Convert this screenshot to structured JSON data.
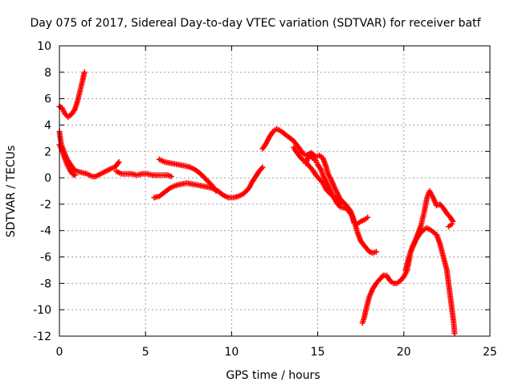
{
  "chart_data": {
    "type": "scatter",
    "title": "Day 075 of 2017, Sidereal Day-to-day VTEC variation (SDTVAR) for receiver batf",
    "xlabel": "GPS time / hours",
    "ylabel": "SDTVAR / TECUs",
    "xlim": [
      0,
      25
    ],
    "ylim": [
      -12,
      10
    ],
    "xticks": [
      0,
      5,
      10,
      15,
      20,
      25
    ],
    "yticks": [
      -12,
      -10,
      -8,
      -6,
      -4,
      -2,
      0,
      2,
      4,
      6,
      8,
      10
    ],
    "grid": true,
    "marker_color": "#ff0000",
    "marker": "plus",
    "series": [
      {
        "points": [
          [
            0.0,
            5.4
          ],
          [
            0.15,
            5.3
          ],
          [
            0.3,
            4.9
          ],
          [
            0.5,
            4.6
          ],
          [
            0.7,
            4.8
          ],
          [
            0.9,
            5.2
          ],
          [
            1.05,
            5.8
          ],
          [
            1.2,
            6.6
          ],
          [
            1.35,
            7.4
          ],
          [
            1.45,
            8.0
          ]
        ]
      },
      {
        "points": [
          [
            0.0,
            3.5
          ],
          [
            0.05,
            3.0
          ],
          [
            0.1,
            2.6
          ],
          [
            0.2,
            2.2
          ],
          [
            0.35,
            1.7
          ],
          [
            0.5,
            1.3
          ],
          [
            0.65,
            1.0
          ],
          [
            0.8,
            0.7
          ],
          [
            1.0,
            0.5
          ],
          [
            1.3,
            0.4
          ],
          [
            1.6,
            0.3
          ],
          [
            1.9,
            0.1
          ],
          [
            2.1,
            0.1
          ],
          [
            2.4,
            0.3
          ],
          [
            2.7,
            0.5
          ],
          [
            3.0,
            0.7
          ],
          [
            3.2,
            0.8
          ],
          [
            3.35,
            1.0
          ],
          [
            3.45,
            1.2
          ]
        ]
      },
      {
        "points": [
          [
            0.0,
            2.5
          ],
          [
            0.15,
            2.1
          ],
          [
            0.3,
            1.5
          ],
          [
            0.45,
            1.0
          ],
          [
            0.6,
            0.6
          ],
          [
            0.75,
            0.3
          ],
          [
            0.9,
            0.2
          ]
        ]
      },
      {
        "points": [
          [
            3.3,
            0.5
          ],
          [
            3.6,
            0.3
          ],
          [
            3.9,
            0.3
          ],
          [
            4.2,
            0.3
          ],
          [
            4.5,
            0.2
          ],
          [
            4.8,
            0.3
          ],
          [
            5.1,
            0.3
          ],
          [
            5.4,
            0.2
          ],
          [
            5.7,
            0.2
          ],
          [
            6.0,
            0.2
          ],
          [
            6.3,
            0.2
          ],
          [
            6.5,
            0.1
          ]
        ]
      },
      {
        "points": [
          [
            5.8,
            1.4
          ],
          [
            6.1,
            1.2
          ],
          [
            6.5,
            1.1
          ],
          [
            6.9,
            1.0
          ],
          [
            7.3,
            0.9
          ],
          [
            7.6,
            0.8
          ],
          [
            7.9,
            0.6
          ],
          [
            8.2,
            0.3
          ],
          [
            8.5,
            -0.1
          ],
          [
            8.8,
            -0.5
          ],
          [
            9.0,
            -0.8
          ],
          [
            9.1,
            -1.0
          ]
        ]
      },
      {
        "points": [
          [
            5.5,
            -1.5
          ],
          [
            5.8,
            -1.4
          ],
          [
            6.1,
            -1.1
          ],
          [
            6.4,
            -0.8
          ],
          [
            6.7,
            -0.6
          ],
          [
            7.0,
            -0.5
          ],
          [
            7.4,
            -0.4
          ],
          [
            7.8,
            -0.5
          ],
          [
            8.2,
            -0.6
          ],
          [
            8.6,
            -0.7
          ],
          [
            8.9,
            -0.8
          ],
          [
            9.2,
            -1.0
          ],
          [
            9.5,
            -1.3
          ],
          [
            9.8,
            -1.5
          ],
          [
            10.1,
            -1.5
          ],
          [
            10.4,
            -1.4
          ],
          [
            10.7,
            -1.2
          ],
          [
            11.0,
            -0.8
          ],
          [
            11.2,
            -0.3
          ],
          [
            11.4,
            0.1
          ],
          [
            11.6,
            0.5
          ],
          [
            11.8,
            0.8
          ]
        ]
      },
      {
        "points": [
          [
            11.8,
            2.2
          ],
          [
            12.0,
            2.6
          ],
          [
            12.2,
            3.1
          ],
          [
            12.4,
            3.5
          ],
          [
            12.6,
            3.7
          ],
          [
            12.8,
            3.6
          ],
          [
            13.0,
            3.4
          ],
          [
            13.3,
            3.1
          ],
          [
            13.6,
            2.8
          ],
          [
            13.9,
            2.3
          ],
          [
            14.1,
            1.9
          ],
          [
            14.3,
            1.7
          ],
          [
            14.5,
            1.8
          ],
          [
            14.7,
            1.5
          ],
          [
            14.9,
            1.3
          ],
          [
            15.0,
            1.0
          ],
          [
            15.2,
            0.6
          ],
          [
            15.3,
            0.2
          ],
          [
            15.5,
            -0.3
          ],
          [
            15.7,
            -0.9
          ],
          [
            15.9,
            -1.4
          ],
          [
            16.1,
            -1.9
          ],
          [
            16.3,
            -2.2
          ],
          [
            16.6,
            -2.3
          ],
          [
            16.8,
            -2.5
          ],
          [
            17.0,
            -2.9
          ],
          [
            17.1,
            -3.4
          ],
          [
            17.3,
            -3.5
          ],
          [
            17.5,
            -3.3
          ],
          [
            17.7,
            -3.2
          ],
          [
            17.9,
            -3.0
          ]
        ]
      },
      {
        "points": [
          [
            14.3,
            1.1
          ],
          [
            14.6,
            1.9
          ],
          [
            14.9,
            1.6
          ],
          [
            15.1,
            1.7
          ],
          [
            15.3,
            1.5
          ],
          [
            15.5,
            0.8
          ],
          [
            15.6,
            0.3
          ],
          [
            15.8,
            -0.2
          ],
          [
            16.0,
            -0.8
          ],
          [
            16.3,
            -1.6
          ],
          [
            16.6,
            -2.0
          ],
          [
            16.9,
            -2.5
          ],
          [
            17.1,
            -3.2
          ],
          [
            17.3,
            -4.1
          ],
          [
            17.5,
            -4.8
          ],
          [
            17.8,
            -5.3
          ],
          [
            18.0,
            -5.6
          ],
          [
            18.2,
            -5.7
          ],
          [
            18.4,
            -5.6
          ]
        ]
      },
      {
        "points": [
          [
            13.6,
            2.3
          ],
          [
            13.9,
            1.7
          ],
          [
            14.1,
            1.4
          ],
          [
            14.3,
            1.2
          ],
          [
            14.5,
            0.9
          ],
          [
            14.7,
            0.6
          ],
          [
            14.9,
            0.2
          ],
          [
            15.1,
            -0.1
          ],
          [
            15.3,
            -0.4
          ],
          [
            15.5,
            -0.9
          ],
          [
            15.8,
            -1.3
          ],
          [
            16.1,
            -1.6
          ],
          [
            16.3,
            -2.0
          ]
        ]
      },
      {
        "points": [
          [
            17.6,
            -11.0
          ],
          [
            17.7,
            -10.6
          ],
          [
            17.8,
            -10.0
          ],
          [
            17.9,
            -9.5
          ],
          [
            18.0,
            -9.0
          ],
          [
            18.2,
            -8.4
          ],
          [
            18.4,
            -8.0
          ],
          [
            18.6,
            -7.7
          ],
          [
            18.8,
            -7.4
          ],
          [
            19.0,
            -7.4
          ],
          [
            19.2,
            -7.8
          ],
          [
            19.4,
            -8.0
          ],
          [
            19.6,
            -8.0
          ],
          [
            19.8,
            -7.8
          ],
          [
            20.0,
            -7.5
          ],
          [
            20.2,
            -7.0
          ],
          [
            20.3,
            -6.3
          ],
          [
            20.4,
            -5.6
          ],
          [
            20.6,
            -5.0
          ],
          [
            20.8,
            -4.3
          ],
          [
            21.0,
            -3.6
          ],
          [
            21.2,
            -2.5
          ],
          [
            21.35,
            -1.5
          ],
          [
            21.5,
            -1.0
          ],
          [
            21.7,
            -1.5
          ],
          [
            21.9,
            -2.1
          ],
          [
            22.1,
            -2.0
          ],
          [
            22.3,
            -2.3
          ],
          [
            22.5,
            -2.7
          ],
          [
            22.7,
            -3.0
          ],
          [
            22.85,
            -3.3
          ]
        ]
      },
      {
        "points": [
          [
            20.1,
            -7.0
          ],
          [
            20.3,
            -6.0
          ],
          [
            20.5,
            -5.2
          ],
          [
            20.7,
            -4.7
          ],
          [
            20.9,
            -4.3
          ],
          [
            21.1,
            -4.0
          ],
          [
            21.3,
            -3.8
          ],
          [
            21.5,
            -3.9
          ],
          [
            21.7,
            -4.1
          ],
          [
            21.9,
            -4.3
          ],
          [
            22.1,
            -5.0
          ],
          [
            22.3,
            -6.0
          ],
          [
            22.5,
            -7.0
          ],
          [
            22.6,
            -8.0
          ],
          [
            22.7,
            -9.0
          ],
          [
            22.8,
            -10.0
          ],
          [
            22.9,
            -11.0
          ],
          [
            22.95,
            -11.8
          ]
        ]
      },
      {
        "points": [
          [
            22.6,
            -3.7
          ],
          [
            22.8,
            -3.5
          ]
        ]
      }
    ]
  }
}
